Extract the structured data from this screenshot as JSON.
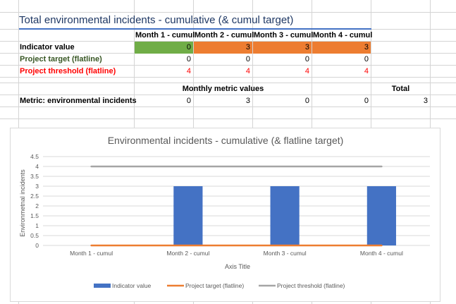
{
  "sheet": {
    "title": "Total environmental incidents - cumulative (& cumul target)",
    "headers": [
      "Month 1 - cumul",
      "Month 2 - cumul",
      "Month 3 - cumul",
      "Month 4 - cumul"
    ],
    "rows": [
      {
        "label": "Indicator value",
        "values": [
          "0",
          "3",
          "3",
          "3"
        ]
      },
      {
        "label": "Project target (flatline)",
        "values": [
          "0",
          "0",
          "0",
          "0"
        ]
      },
      {
        "label": "Project threshold (flatline)",
        "values": [
          "4",
          "4",
          "4",
          "4"
        ]
      }
    ],
    "monthly_header": "Monthly metric values",
    "total_header": "Total",
    "metric_row": {
      "label": "Metric: environmental incidents",
      "values": [
        "0",
        "3",
        "0",
        "0"
      ],
      "total": "3"
    }
  },
  "colors": {
    "indicator": "#4472c4",
    "target": "#ed7d31",
    "threshold": "#a5a5a5",
    "cell_green": "#70ad47",
    "cell_orange": "#ed7d31"
  },
  "chart_data": {
    "type": "bar",
    "title": "Environmental incidents - cumulative (& flatline target)",
    "categories": [
      "Month 1 - cumul",
      "Month 2 - cumul",
      "Month 3 - cumul",
      "Month 4 - cumul"
    ],
    "series": [
      {
        "name": "Indicator value",
        "kind": "bar",
        "values": [
          0,
          3,
          3,
          3
        ]
      },
      {
        "name": "Project target (flatline)",
        "kind": "line",
        "values": [
          0,
          0,
          0,
          0
        ]
      },
      {
        "name": "Project threshold (flatline)",
        "kind": "line",
        "values": [
          4,
          4,
          4,
          4
        ]
      }
    ],
    "xlabel": "Axis Title",
    "ylabel": "Environmetnal incidents",
    "ylim": [
      0,
      4.5
    ],
    "yticks": [
      "0",
      "0.5",
      "1",
      "1.5",
      "2",
      "2.5",
      "3",
      "3.5",
      "4",
      "4.5"
    ],
    "grid": true,
    "legend": "bottom"
  }
}
